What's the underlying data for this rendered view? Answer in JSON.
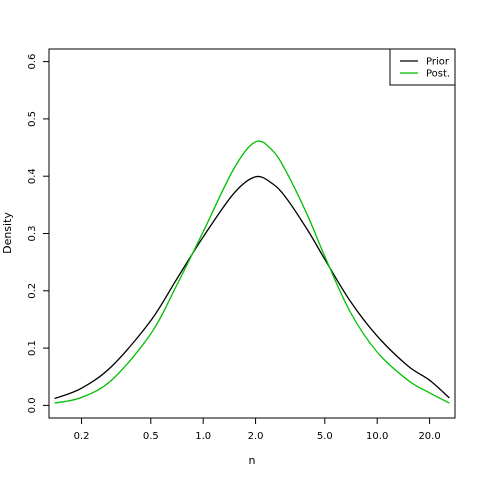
{
  "chart_data": {
    "type": "line",
    "title": "",
    "xlabel": "n",
    "ylabel": "Density",
    "x_scale": "log",
    "xlim": [
      0.13,
      28.0
    ],
    "ylim": [
      -0.022,
      0.622
    ],
    "x_ticks": [
      0.2,
      0.5,
      1.0,
      2.0,
      5.0,
      10.0,
      20.0
    ],
    "x_tick_labels": [
      "0.2",
      "0.5",
      "1.0",
      "2.0",
      "5.0",
      "10.0",
      "20.0"
    ],
    "y_ticks": [
      0.0,
      0.1,
      0.2,
      0.3,
      0.4,
      0.5,
      0.6
    ],
    "y_tick_labels": [
      "0.0",
      "0.1",
      "0.2",
      "0.3",
      "0.4",
      "0.5",
      "0.6"
    ],
    "grid": false,
    "legend_position": "top-right",
    "series": [
      {
        "name": "Prior",
        "color": "#000000",
        "x": [
          0.14,
          0.2,
          0.3,
          0.5,
          0.7,
          1.0,
          1.5,
          2.0,
          2.5,
          3.0,
          4.0,
          5.0,
          7.0,
          10.0,
          15.0,
          20.0,
          26.0
        ],
        "y": [
          0.012,
          0.03,
          0.069,
          0.148,
          0.219,
          0.294,
          0.37,
          0.399,
          0.387,
          0.362,
          0.305,
          0.255,
          0.182,
          0.121,
          0.069,
          0.044,
          0.013
        ]
      },
      {
        "name": "Post.",
        "color": "#00c000",
        "x": [
          0.14,
          0.2,
          0.3,
          0.5,
          0.7,
          1.0,
          1.5,
          2.0,
          2.5,
          3.0,
          4.0,
          5.0,
          7.0,
          10.0,
          15.0,
          20.0,
          26.0
        ],
        "y": [
          0.004,
          0.014,
          0.045,
          0.125,
          0.208,
          0.303,
          0.413,
          0.46,
          0.445,
          0.408,
          0.33,
          0.26,
          0.163,
          0.093,
          0.044,
          0.022,
          0.004
        ]
      }
    ]
  }
}
